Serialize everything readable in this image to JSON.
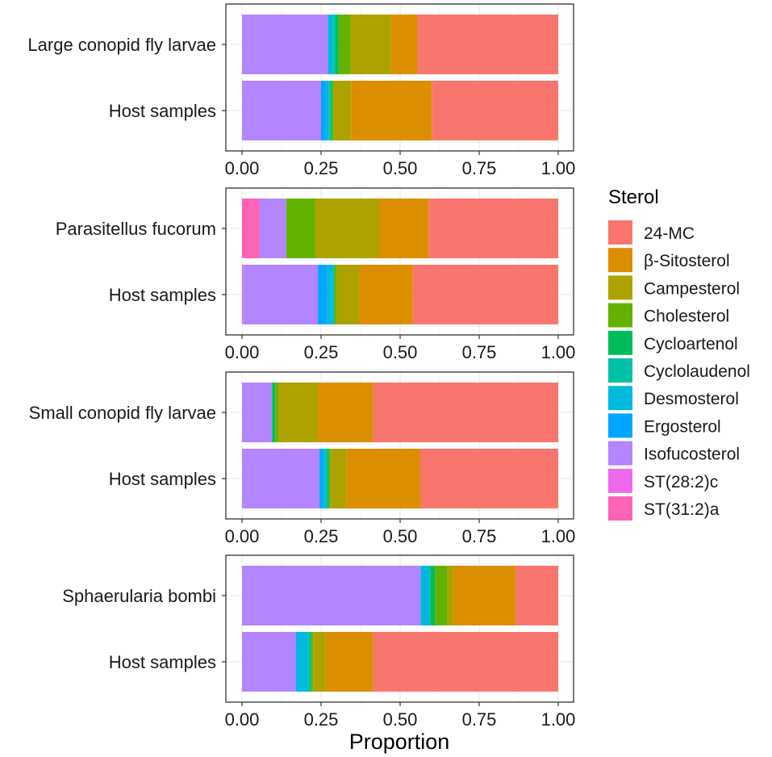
{
  "chart_data": {
    "type": "bar",
    "orientation": "horizontal",
    "stacked": true,
    "xlabel": "Proportion",
    "xlim": [
      0,
      1
    ],
    "x_ticks": [
      "0.00",
      "0.25",
      "0.50",
      "0.75",
      "1.00"
    ],
    "grid": true,
    "legend": {
      "title": "Sterol",
      "position": "right",
      "entries": [
        {
          "name": "24-MC",
          "color": "#F8766D"
        },
        {
          "name": "β-Sitosterol",
          "color": "#DB8E00"
        },
        {
          "name": "Campesterol",
          "color": "#AEA200"
        },
        {
          "name": "Cholesterol",
          "color": "#64B200"
        },
        {
          "name": "Cycloartenol",
          "color": "#00BD5C"
        },
        {
          "name": "Cyclolaudenol",
          "color": "#00C1A7"
        },
        {
          "name": "Desmosterol",
          "color": "#00BADE"
        },
        {
          "name": "Ergosterol",
          "color": "#00A6FF"
        },
        {
          "name": "Isofucosterol",
          "color": "#B385FF"
        },
        {
          "name": "ST(28:2)c",
          "color": "#EF67EB"
        },
        {
          "name": "ST(31:2)a",
          "color": "#FF63B6"
        }
      ]
    },
    "stack_order": [
      "ST(31:2)a",
      "ST(28:2)c",
      "Isofucosterol",
      "Ergosterol",
      "Desmosterol",
      "Cyclolaudenol",
      "Cycloartenol",
      "Cholesterol",
      "Campesterol",
      "β-Sitosterol",
      "24-MC"
    ],
    "panels": [
      {
        "bars": [
          {
            "label": "Large conopid fly larvae",
            "values": {
              "ST(31:2)a": 0,
              "ST(28:2)c": 0,
              "Isofucosterol": 0.272,
              "Ergosterol": 0,
              "Desmosterol": 0.018,
              "Cyclolaudenol": 0.005,
              "Cycloartenol": 0.01,
              "Cholesterol": 0.038,
              "Campesterol": 0.127,
              "β-Sitosterol": 0.085,
              "24-MC": 0.445
            }
          },
          {
            "label": "Host samples",
            "values": {
              "ST(31:2)a": 0,
              "ST(28:2)c": 0,
              "Isofucosterol": 0.25,
              "Ergosterol": 0.015,
              "Desmosterol": 0.01,
              "Cyclolaudenol": 0.005,
              "Cycloartenol": 0.005,
              "Cholesterol": 0.005,
              "Campesterol": 0.055,
              "β-Sitosterol": 0.255,
              "24-MC": 0.4
            }
          }
        ]
      },
      {
        "bars": [
          {
            "label": "Parasitellus fucorum",
            "values": {
              "ST(31:2)a": 0.055,
              "ST(28:2)c": 0,
              "Isofucosterol": 0.085,
              "Ergosterol": 0,
              "Desmosterol": 0,
              "Cyclolaudenol": 0,
              "Cycloartenol": 0,
              "Cholesterol": 0.092,
              "Campesterol": 0.203,
              "β-Sitosterol": 0.155,
              "24-MC": 0.41
            }
          },
          {
            "label": "Host samples",
            "values": {
              "ST(31:2)a": 0,
              "ST(28:2)c": 0.003,
              "Isofucosterol": 0.237,
              "Ergosterol": 0.03,
              "Desmosterol": 0.02,
              "Cyclolaudenol": 0,
              "Cycloartenol": 0.003,
              "Cholesterol": 0.007,
              "Campesterol": 0.07,
              "β-Sitosterol": 0.17,
              "24-MC": 0.46
            }
          }
        ]
      },
      {
        "bars": [
          {
            "label": "Small conopid fly larvae",
            "values": {
              "ST(31:2)a": 0,
              "ST(28:2)c": 0,
              "Isofucosterol": 0.095,
              "Ergosterol": 0,
              "Desmosterol": 0,
              "Cyclolaudenol": 0,
              "Cycloartenol": 0.01,
              "Cholesterol": 0.01,
              "Campesterol": 0.125,
              "β-Sitosterol": 0.175,
              "24-MC": 0.585
            }
          },
          {
            "label": "Host samples",
            "values": {
              "ST(31:2)a": 0,
              "ST(28:2)c": 0,
              "Isofucosterol": 0.245,
              "Ergosterol": 0.01,
              "Desmosterol": 0.01,
              "Cyclolaudenol": 0.005,
              "Cycloartenol": 0.005,
              "Cholesterol": 0.005,
              "Campesterol": 0.05,
              "β-Sitosterol": 0.235,
              "24-MC": 0.435
            }
          }
        ]
      },
      {
        "bars": [
          {
            "label": "Sphaerularia bombi",
            "values": {
              "ST(31:2)a": 0,
              "ST(28:2)c": 0,
              "Isofucosterol": 0.565,
              "Ergosterol": 0,
              "Desmosterol": 0.03,
              "Cyclolaudenol": 0,
              "Cycloartenol": 0.015,
              "Cholesterol": 0.04,
              "Campesterol": 0.02,
              "β-Sitosterol": 0.195,
              "24-MC": 0.135
            }
          },
          {
            "label": "Host samples",
            "values": {
              "ST(31:2)a": 0,
              "ST(28:2)c": 0,
              "Isofucosterol": 0.17,
              "Ergosterol": 0.005,
              "Desmosterol": 0.035,
              "Cyclolaudenol": 0.005,
              "Cycloartenol": 0.005,
              "Cholesterol": 0.005,
              "Campesterol": 0.04,
              "β-Sitosterol": 0.15,
              "24-MC": 0.585
            }
          }
        ]
      }
    ]
  }
}
